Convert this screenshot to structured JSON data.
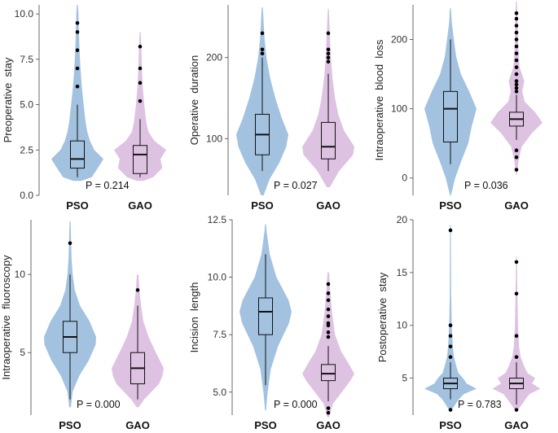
{
  "chart_data": [
    {
      "type": "violin",
      "ylabel": "Preoperative  stay",
      "ylim": [
        0,
        10.5
      ],
      "yticks": [
        "0.0",
        "2.5",
        "5.0",
        "7.5",
        "10.0"
      ],
      "yticks_values": [
        0,
        2.5,
        5,
        7.5,
        10
      ],
      "categories": [
        "PSO",
        "GAO"
      ],
      "p_value": "P = 0.214",
      "series": [
        {
          "name": "PSO",
          "color": "#9dbfde",
          "box": {
            "q1": 1.5,
            "median": 2.0,
            "q3": 3.0,
            "whisker_low": 1.0,
            "whisker_high": 5.0
          },
          "outliers": [
            6.0,
            7.0,
            8.0,
            9.0,
            9.5
          ],
          "density": [
            [
              0.8,
              0.15
            ],
            [
              1.0,
              0.55
            ],
            [
              1.5,
              0.78
            ],
            [
              2.0,
              1.0
            ],
            [
              2.5,
              0.65
            ],
            [
              3.0,
              0.48
            ],
            [
              3.5,
              0.38
            ],
            [
              4.0,
              0.32
            ],
            [
              5.0,
              0.24
            ],
            [
              6.0,
              0.17
            ],
            [
              7.0,
              0.12
            ],
            [
              8.0,
              0.08
            ],
            [
              9.0,
              0.06
            ],
            [
              10.0,
              0.04
            ],
            [
              10.5,
              0.02
            ]
          ]
        },
        {
          "name": "GAO",
          "color": "#dcbfe0",
          "box": {
            "q1": 1.2,
            "median": 2.25,
            "q3": 2.75,
            "whisker_low": 1.0,
            "whisker_high": 4.2
          },
          "outliers": [
            5.2,
            6.2,
            7.0,
            8.2
          ],
          "density": [
            [
              0.8,
              0.12
            ],
            [
              1.0,
              0.5
            ],
            [
              1.5,
              0.85
            ],
            [
              2.0,
              0.78
            ],
            [
              2.5,
              1.0
            ],
            [
              3.0,
              0.55
            ],
            [
              3.5,
              0.32
            ],
            [
              4.0,
              0.24
            ],
            [
              5.0,
              0.16
            ],
            [
              6.0,
              0.1
            ],
            [
              7.0,
              0.07
            ],
            [
              8.0,
              0.05
            ],
            [
              9.0,
              0.02
            ]
          ]
        }
      ]
    },
    {
      "type": "violin",
      "ylabel": "Operative  duration",
      "ylim": [
        30,
        265
      ],
      "yticks": [
        "100",
        "200"
      ],
      "yticks_values": [
        100,
        200
      ],
      "categories": [
        "PSO",
        "GAO"
      ],
      "p_value": "P = 0.027",
      "series": [
        {
          "name": "PSO",
          "color": "#9dbfde",
          "box": {
            "q1": 80,
            "median": 105,
            "q3": 130,
            "whisker_low": 60,
            "whisker_high": 200
          },
          "outliers": [
            205,
            210,
            230
          ],
          "density": [
            [
              30,
              0.05
            ],
            [
              50,
              0.28
            ],
            [
              70,
              0.65
            ],
            [
              90,
              0.92
            ],
            [
              105,
              1.0
            ],
            [
              125,
              0.75
            ],
            [
              150,
              0.5
            ],
            [
              175,
              0.3
            ],
            [
              200,
              0.16
            ],
            [
              225,
              0.08
            ],
            [
              250,
              0.04
            ],
            [
              262,
              0.02
            ]
          ]
        },
        {
          "name": "GAO",
          "color": "#dcbfe0",
          "box": {
            "q1": 75,
            "median": 90,
            "q3": 120,
            "whisker_low": 60,
            "whisker_high": 180
          },
          "outliers": [
            195,
            200,
            205,
            210,
            230
          ],
          "density": [
            [
              40,
              0.06
            ],
            [
              60,
              0.42
            ],
            [
              80,
              0.95
            ],
            [
              90,
              1.0
            ],
            [
              110,
              0.6
            ],
            [
              130,
              0.38
            ],
            [
              150,
              0.26
            ],
            [
              175,
              0.16
            ],
            [
              200,
              0.1
            ],
            [
              230,
              0.06
            ],
            [
              260,
              0.02
            ]
          ]
        }
      ]
    },
    {
      "type": "violin",
      "ylabel": "Intraoperative  blood  loss",
      "ylim": [
        -25,
        250
      ],
      "yticks": [
        "0",
        "100",
        "200"
      ],
      "yticks_values": [
        0,
        100,
        200
      ],
      "categories": [
        "PSO",
        "GAO"
      ],
      "p_value": "P = 0.036",
      "series": [
        {
          "name": "PSO",
          "color": "#9dbfde",
          "box": {
            "q1": 52,
            "median": 100,
            "q3": 125,
            "whisker_low": 20,
            "whisker_high": 200
          },
          "outliers": [],
          "density": [
            [
              -25,
              0.02
            ],
            [
              0,
              0.18
            ],
            [
              25,
              0.42
            ],
            [
              50,
              0.68
            ],
            [
              75,
              0.82
            ],
            [
              100,
              1.0
            ],
            [
              125,
              0.72
            ],
            [
              150,
              0.4
            ],
            [
              175,
              0.22
            ],
            [
              200,
              0.13
            ],
            [
              225,
              0.05
            ],
            [
              245,
              0.02
            ]
          ]
        },
        {
          "name": "GAO",
          "color": "#dcbfe0",
          "box": {
            "q1": 75,
            "median": 85,
            "q3": 95,
            "whisker_low": 55,
            "whisker_high": 120
          },
          "outliers": [
            12,
            30,
            40,
            125,
            130,
            135,
            140,
            150,
            160,
            170,
            180,
            190,
            200,
            210,
            220,
            230,
            238
          ],
          "density": [
            [
              5,
              0.02
            ],
            [
              25,
              0.08
            ],
            [
              45,
              0.2
            ],
            [
              65,
              0.6
            ],
            [
              80,
              1.0
            ],
            [
              95,
              0.72
            ],
            [
              110,
              0.32
            ],
            [
              125,
              0.22
            ],
            [
              140,
              0.3
            ],
            [
              160,
              0.12
            ],
            [
              190,
              0.07
            ],
            [
              220,
              0.05
            ],
            [
              255,
              0.02
            ]
          ]
        }
      ]
    },
    {
      "type": "violin",
      "ylabel": "Intraoperative  fluoroscopy",
      "ylim": [
        1,
        13.5
      ],
      "yticks": [
        "5",
        "10"
      ],
      "yticks_values": [
        5,
        10
      ],
      "categories": [
        "PSO",
        "GAO"
      ],
      "p_value": "P = 0.000",
      "series": [
        {
          "name": "PSO",
          "color": "#9dbfde",
          "box": {
            "q1": 5.0,
            "median": 6.0,
            "q3": 7.0,
            "whisker_low": 2.0,
            "whisker_high": 10.0
          },
          "outliers": [
            12.0
          ],
          "density": [
            [
              1.5,
              0.03
            ],
            [
              2.5,
              0.1
            ],
            [
              3.5,
              0.35
            ],
            [
              4.5,
              0.72
            ],
            [
              5.5,
              0.98
            ],
            [
              6.0,
              1.0
            ],
            [
              7.0,
              0.75
            ],
            [
              8.0,
              0.38
            ],
            [
              9.0,
              0.18
            ],
            [
              10.0,
              0.1
            ],
            [
              11.0,
              0.06
            ],
            [
              12.0,
              0.04
            ],
            [
              13.4,
              0.02
            ]
          ]
        },
        {
          "name": "GAO",
          "color": "#dcbfe0",
          "box": {
            "q1": 3.0,
            "median": 4.0,
            "q3": 5.0,
            "whisker_low": 2.0,
            "whisker_high": 8.0
          },
          "outliers": [
            9.0
          ],
          "density": [
            [
              1.5,
              0.04
            ],
            [
              2.0,
              0.25
            ],
            [
              3.0,
              0.82
            ],
            [
              3.5,
              0.95
            ],
            [
              4.0,
              1.0
            ],
            [
              5.0,
              0.7
            ],
            [
              6.0,
              0.42
            ],
            [
              7.0,
              0.22
            ],
            [
              8.0,
              0.13
            ],
            [
              9.0,
              0.07
            ],
            [
              10.0,
              0.03
            ]
          ]
        }
      ]
    },
    {
      "type": "violin",
      "ylabel": "Incision  length",
      "ylim": [
        4,
        12.5
      ],
      "yticks": [
        "5.0",
        "7.5",
        "10.0",
        "12.5"
      ],
      "yticks_values": [
        5,
        7.5,
        10,
        12.5
      ],
      "categories": [
        "PSO",
        "GAO"
      ],
      "p_value": "P = 0.000",
      "series": [
        {
          "name": "PSO",
          "color": "#9dbfde",
          "box": {
            "q1": 7.5,
            "median": 8.5,
            "q3": 9.1,
            "whisker_low": 5.3,
            "whisker_high": 11.0
          },
          "outliers": [],
          "density": [
            [
              4.2,
              0.02
            ],
            [
              5.0,
              0.08
            ],
            [
              6.0,
              0.2
            ],
            [
              7.0,
              0.48
            ],
            [
              8.0,
              0.9
            ],
            [
              8.5,
              1.0
            ],
            [
              9.0,
              0.88
            ],
            [
              10.0,
              0.42
            ],
            [
              11.0,
              0.16
            ],
            [
              12.0,
              0.04
            ],
            [
              12.3,
              0.02
            ]
          ]
        },
        {
          "name": "GAO",
          "color": "#dcbfe0",
          "box": {
            "q1": 5.5,
            "median": 5.8,
            "q3": 6.2,
            "whisker_low": 4.6,
            "whisker_high": 7.0
          },
          "outliers": [
            4.1,
            4.3,
            7.4,
            7.6,
            7.9,
            8.0,
            8.3,
            8.6,
            9.0,
            9.3,
            9.7
          ],
          "density": [
            [
              3.9,
              0.03
            ],
            [
              4.5,
              0.18
            ],
            [
              5.0,
              0.52
            ],
            [
              5.5,
              0.85
            ],
            [
              5.8,
              1.0
            ],
            [
              6.2,
              0.8
            ],
            [
              6.8,
              0.48
            ],
            [
              7.5,
              0.26
            ],
            [
              8.5,
              0.14
            ],
            [
              9.5,
              0.07
            ],
            [
              10.2,
              0.03
            ]
          ]
        }
      ]
    },
    {
      "type": "violin",
      "ylabel": "Postoperative  stay",
      "ylim": [
        1.5,
        20
      ],
      "yticks": [
        "5",
        "10",
        "15",
        "20"
      ],
      "yticks_values": [
        5,
        10,
        15,
        20
      ],
      "categories": [
        "PSO",
        "GAO"
      ],
      "p_value": "P = 0.783",
      "series": [
        {
          "name": "PSO",
          "color": "#9dbfde",
          "box": {
            "q1": 4.0,
            "median": 4.5,
            "q3": 5.0,
            "whisker_low": 3.0,
            "whisker_high": 6.5
          },
          "outliers": [
            2.0,
            7.0,
            8.0,
            9.0,
            10.0,
            19.0
          ],
          "density": [
            [
              2.0,
              0.05
            ],
            [
              3.0,
              0.32
            ],
            [
              3.5,
              0.52
            ],
            [
              4.0,
              1.0
            ],
            [
              4.5,
              0.62
            ],
            [
              5.0,
              0.48
            ],
            [
              5.5,
              0.3
            ],
            [
              6.0,
              0.24
            ],
            [
              7.0,
              0.13
            ],
            [
              8.0,
              0.09
            ],
            [
              10.0,
              0.05
            ],
            [
              13.0,
              0.025
            ],
            [
              19.5,
              0.015
            ]
          ]
        },
        {
          "name": "GAO",
          "color": "#dcbfe0",
          "box": {
            "q1": 4.0,
            "median": 4.5,
            "q3": 5.0,
            "whisker_low": 2.5,
            "whisker_high": 6.5
          },
          "outliers": [
            2.0,
            7.0,
            9.0,
            13.0,
            16.0
          ],
          "density": [
            [
              2.0,
              0.06
            ],
            [
              3.0,
              0.35
            ],
            [
              3.5,
              0.5
            ],
            [
              4.0,
              0.92
            ],
            [
              4.5,
              0.6
            ],
            [
              5.0,
              0.72
            ],
            [
              5.5,
              0.42
            ],
            [
              6.0,
              0.32
            ],
            [
              7.0,
              0.16
            ],
            [
              8.0,
              0.1
            ],
            [
              10.0,
              0.06
            ],
            [
              13.0,
              0.035
            ],
            [
              16.5,
              0.015
            ]
          ]
        }
      ]
    }
  ]
}
